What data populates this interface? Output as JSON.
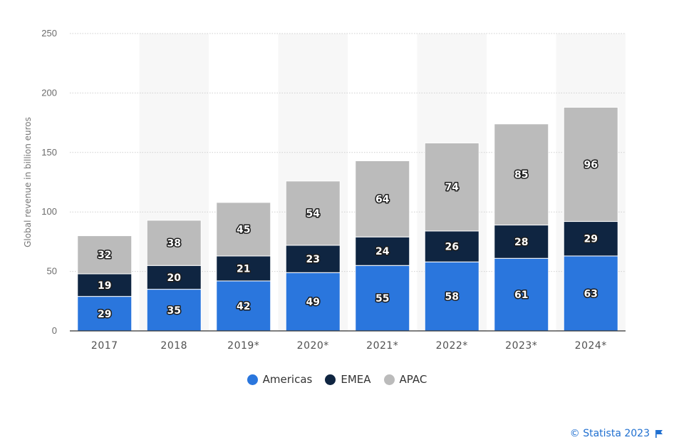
{
  "chart_data": {
    "type": "bar",
    "stacked": true,
    "categories": [
      "2017",
      "2018",
      "2019*",
      "2020*",
      "2021*",
      "2022*",
      "2023*",
      "2024*"
    ],
    "series": [
      {
        "name": "Americas",
        "color": "#2a76dd",
        "values": [
          29,
          35,
          42,
          49,
          55,
          58,
          61,
          63
        ]
      },
      {
        "name": "EMEA",
        "color": "#0f2541",
        "values": [
          19,
          20,
          21,
          23,
          24,
          26,
          28,
          29
        ]
      },
      {
        "name": "APAC",
        "color": "#bbbbbb",
        "values": [
          32,
          38,
          45,
          54,
          64,
          74,
          85,
          96
        ]
      }
    ],
    "title": "",
    "xlabel": "",
    "ylabel": "Global revenue in billion euros",
    "ylim": [
      0,
      250
    ],
    "yticks": [
      0,
      50,
      100,
      150,
      200,
      250
    ],
    "grid": true,
    "legend_position": "bottom"
  },
  "credit": {
    "text": "© Statista 2023",
    "color": "#1f6fd0",
    "icon": "flag-icon"
  }
}
